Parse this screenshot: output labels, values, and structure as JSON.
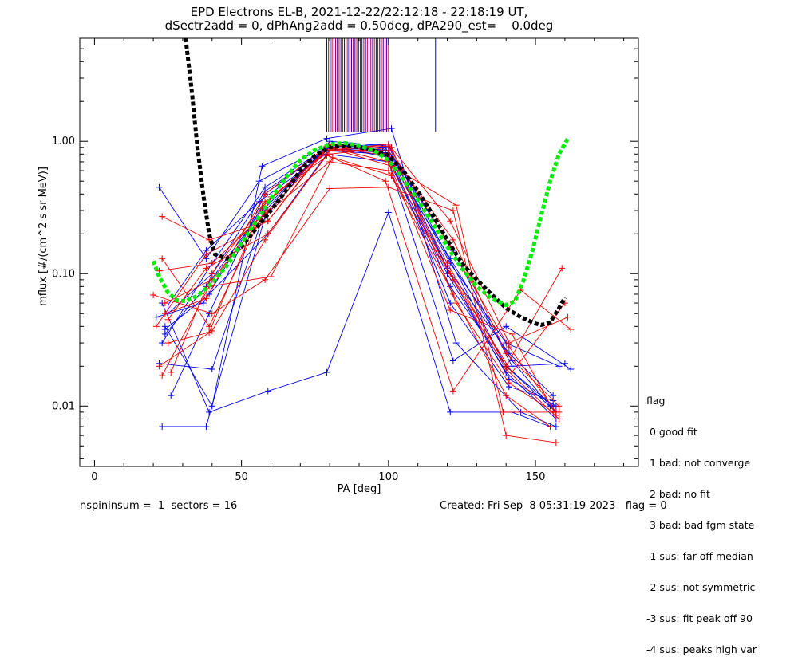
{
  "chart_data": {
    "type": "line",
    "title": "EPD Electrons EL-B, 2021-12-22/22:12:18 - 22:18:19 UT,",
    "subtitle": "dSectr2add = 0, dPhAng2add = 0.50deg, dPA290_est=    0.0deg",
    "xlabel": "PA [deg]",
    "ylabel": "mflux [#/(cm^2 s sr MeV)]",
    "xlim": [
      -5,
      185
    ],
    "ylim": [
      0.0035,
      6.0
    ],
    "yscale": "log",
    "x_ticks": [
      0,
      50,
      100,
      150
    ],
    "x_tick_labels": [
      "0",
      "50",
      "100",
      "150"
    ],
    "y_ticks": [
      0.01,
      0.1,
      1.0
    ],
    "y_tick_labels": [
      "0.01",
      "0.10",
      "1.00"
    ],
    "grid": false,
    "fit_curves": [
      {
        "color": "#000000",
        "x": [
          31,
          33,
          35,
          37,
          39,
          41,
          45,
          50,
          55,
          60,
          65,
          70,
          75,
          80,
          85,
          90,
          95,
          100,
          105,
          110,
          115,
          120,
          125,
          130,
          135,
          140,
          145,
          150,
          152,
          155,
          158,
          160
        ],
        "y": [
          6.0,
          2.5,
          0.9,
          0.4,
          0.2,
          0.14,
          0.13,
          0.16,
          0.22,
          0.3,
          0.42,
          0.6,
          0.78,
          0.9,
          0.93,
          0.9,
          0.85,
          0.78,
          0.6,
          0.42,
          0.28,
          0.18,
          0.12,
          0.09,
          0.07,
          0.055,
          0.047,
          0.042,
          0.041,
          0.043,
          0.055,
          0.066
        ]
      },
      {
        "color": "#00ee00",
        "x": [
          20,
          22,
          25,
          28,
          31,
          35,
          40,
          45,
          50,
          55,
          60,
          65,
          70,
          75,
          80,
          85,
          90,
          95,
          100,
          105,
          110,
          115,
          120,
          125,
          130,
          135,
          140,
          143,
          146,
          149,
          152,
          155,
          158,
          161
        ],
        "y": [
          0.125,
          0.095,
          0.072,
          0.063,
          0.062,
          0.068,
          0.085,
          0.115,
          0.17,
          0.25,
          0.37,
          0.53,
          0.72,
          0.86,
          0.95,
          0.97,
          0.93,
          0.85,
          0.72,
          0.52,
          0.36,
          0.24,
          0.16,
          0.11,
          0.08,
          0.065,
          0.058,
          0.062,
          0.09,
          0.15,
          0.28,
          0.5,
          0.8,
          1.05
        ]
      }
    ],
    "spike_lines": {
      "color_a": "#0000cc",
      "color_b": "#cc0000",
      "x": [
        79,
        79.6,
        80.2,
        80.8,
        81.4,
        82,
        82.6,
        83.2,
        83.8,
        84.4,
        85,
        85.6,
        86.2,
        86.8,
        87.4,
        88,
        88.6,
        89.2,
        89.8,
        90.4,
        91,
        91.6,
        92.2,
        92.8,
        93.4,
        94,
        94.6,
        95.2,
        95.8,
        96.4,
        97,
        97.6,
        98.2,
        98.8,
        99.4,
        100,
        116
      ],
      "y_low": 1.18,
      "y_high": 6.0
    },
    "series": [
      {
        "color": "blue",
        "x": [
          22,
          40,
          58,
          79,
          100,
          140,
          157
        ],
        "y": [
          0.021,
          0.019,
          0.3,
          0.9,
          0.95,
          0.02,
          0.009
        ]
      },
      {
        "color": "blue",
        "x": [
          23,
          38,
          58,
          80,
          100,
          122,
          141,
          157
        ],
        "y": [
          0.007,
          0.007,
          0.27,
          1.0,
          0.92,
          0.09,
          0.016,
          0.01
        ]
      },
      {
        "color": "blue",
        "x": [
          24,
          40,
          57,
          79,
          101,
          123,
          145,
          157
        ],
        "y": [
          0.04,
          0.01,
          0.65,
          1.05,
          1.25,
          0.03,
          0.009,
          0.007
        ]
      },
      {
        "color": "blue",
        "x": [
          22,
          38,
          56,
          80,
          99,
          120,
          141,
          156
        ],
        "y": [
          0.45,
          0.13,
          0.5,
          0.95,
          0.9,
          0.11,
          0.025,
          0.012
        ]
      },
      {
        "color": "blue",
        "x": [
          23,
          39,
          59,
          79,
          100,
          121,
          142,
          155
        ],
        "y": [
          0.06,
          0.009,
          0.013,
          0.018,
          0.29,
          0.009,
          0.009,
          0.007
        ]
      },
      {
        "color": "blue",
        "x": [
          26,
          39,
          58,
          81,
          100,
          121,
          140,
          158
        ],
        "y": [
          0.012,
          0.05,
          0.4,
          0.95,
          0.85,
          0.12,
          0.03,
          0.02
        ]
      },
      {
        "color": "blue",
        "x": [
          24,
          38,
          57,
          78,
          99,
          121,
          140,
          156
        ],
        "y": [
          0.035,
          0.08,
          0.3,
          0.85,
          0.8,
          0.08,
          0.02,
          0.01
        ]
      },
      {
        "color": "blue",
        "x": [
          25,
          40,
          58,
          80,
          100,
          122,
          142,
          160
        ],
        "y": [
          0.05,
          0.1,
          0.42,
          0.9,
          0.85,
          0.15,
          0.02,
          0.021
        ]
      },
      {
        "color": "blue",
        "x": [
          21,
          37,
          57,
          79,
          99,
          120,
          140,
          157
        ],
        "y": [
          0.047,
          0.06,
          0.32,
          0.88,
          0.82,
          0.1,
          0.018,
          0.008
        ]
      },
      {
        "color": "blue",
        "x": [
          23,
          40,
          58,
          80,
          101,
          121,
          141,
          156
        ],
        "y": [
          0.03,
          0.12,
          0.45,
          0.92,
          0.75,
          0.06,
          0.014,
          0.011
        ]
      },
      {
        "color": "blue",
        "x": [
          24,
          39,
          59,
          79,
          100,
          122,
          140,
          162
        ],
        "y": [
          0.038,
          0.07,
          0.2,
          0.8,
          0.7,
          0.022,
          0.04,
          0.019
        ]
      },
      {
        "color": "blue",
        "x": [
          25,
          38,
          56,
          80,
          98,
          121,
          142,
          155
        ],
        "y": [
          0.058,
          0.15,
          0.35,
          0.85,
          0.9,
          0.13,
          0.022,
          0.01
        ]
      },
      {
        "color": "red",
        "x": [
          20,
          40,
          58,
          80,
          100,
          122,
          140,
          157
        ],
        "y": [
          0.069,
          0.05,
          0.09,
          0.44,
          0.45,
          0.3,
          0.006,
          0.0053
        ]
      },
      {
        "color": "red",
        "x": [
          23,
          39,
          59,
          79,
          101,
          123,
          139,
          158
        ],
        "y": [
          0.27,
          0.18,
          0.25,
          0.9,
          0.65,
          0.33,
          0.009,
          0.009
        ]
      },
      {
        "color": "red",
        "x": [
          22,
          40,
          58,
          80,
          100,
          121,
          141,
          161
        ],
        "y": [
          0.02,
          0.037,
          0.18,
          0.85,
          0.95,
          0.25,
          0.03,
          0.047
        ]
      },
      {
        "color": "red",
        "x": [
          23,
          39,
          60,
          81,
          99,
          122,
          145,
          162
        ],
        "y": [
          0.017,
          0.08,
          0.095,
          0.75,
          0.5,
          0.013,
          0.075,
          0.038
        ]
      },
      {
        "color": "red",
        "x": [
          24,
          38,
          58,
          80,
          100,
          120,
          140,
          159
        ],
        "y": [
          0.05,
          0.065,
          0.4,
          0.95,
          0.8,
          0.12,
          0.02,
          0.11
        ]
      },
      {
        "color": "red",
        "x": [
          22,
          40,
          59,
          80,
          100,
          121,
          142,
          157
        ],
        "y": [
          0.105,
          0.12,
          0.3,
          0.9,
          0.7,
          0.053,
          0.035,
          0.0085
        ]
      },
      {
        "color": "red",
        "x": [
          25,
          39,
          57,
          79,
          100,
          122,
          140,
          158
        ],
        "y": [
          0.03,
          0.036,
          0.32,
          0.86,
          0.85,
          0.18,
          0.025,
          0.01
        ]
      },
      {
        "color": "red",
        "x": [
          26,
          40,
          58,
          80,
          101,
          123,
          141,
          156
        ],
        "y": [
          0.018,
          0.1,
          0.35,
          0.8,
          0.9,
          0.06,
          0.015,
          0.009
        ]
      },
      {
        "color": "red",
        "x": [
          21,
          38,
          59,
          79,
          99,
          121,
          142,
          160
        ],
        "y": [
          0.04,
          0.14,
          0.25,
          0.92,
          0.78,
          0.1,
          0.018,
          0.06
        ]
      },
      {
        "color": "red",
        "x": [
          24,
          40,
          58,
          80,
          100,
          122,
          140,
          155
        ],
        "y": [
          0.06,
          0.09,
          0.28,
          0.7,
          0.6,
          0.07,
          0.012,
          0.007
        ]
      },
      {
        "color": "red",
        "x": [
          23,
          39,
          60,
          81,
          100,
          121,
          141,
          157
        ],
        "y": [
          0.13,
          0.04,
          0.38,
          0.88,
          0.92,
          0.16,
          0.028,
          0.009
        ]
      },
      {
        "color": "red",
        "x": [
          25,
          38,
          59,
          79,
          101,
          122,
          140,
          158
        ],
        "y": [
          0.045,
          0.11,
          0.2,
          0.78,
          0.55,
          0.09,
          0.019,
          0.008
        ]
      }
    ]
  },
  "legend": {
    "title": "flag",
    "items": [
      " 0 good fit",
      " 1 bad: not converge",
      " 2 bad: no fit",
      " 3 bad: bad fgm state",
      "-1 sus: far off median",
      "-2 sus: not symmetric",
      "-3 sus: fit peak off 90",
      "-4 sus: peaks high var"
    ]
  },
  "footer": {
    "left": "nspininsum =  1  sectors = 16",
    "right": "Created: Fri Sep  8 05:31:19 2023   flag = 0"
  }
}
